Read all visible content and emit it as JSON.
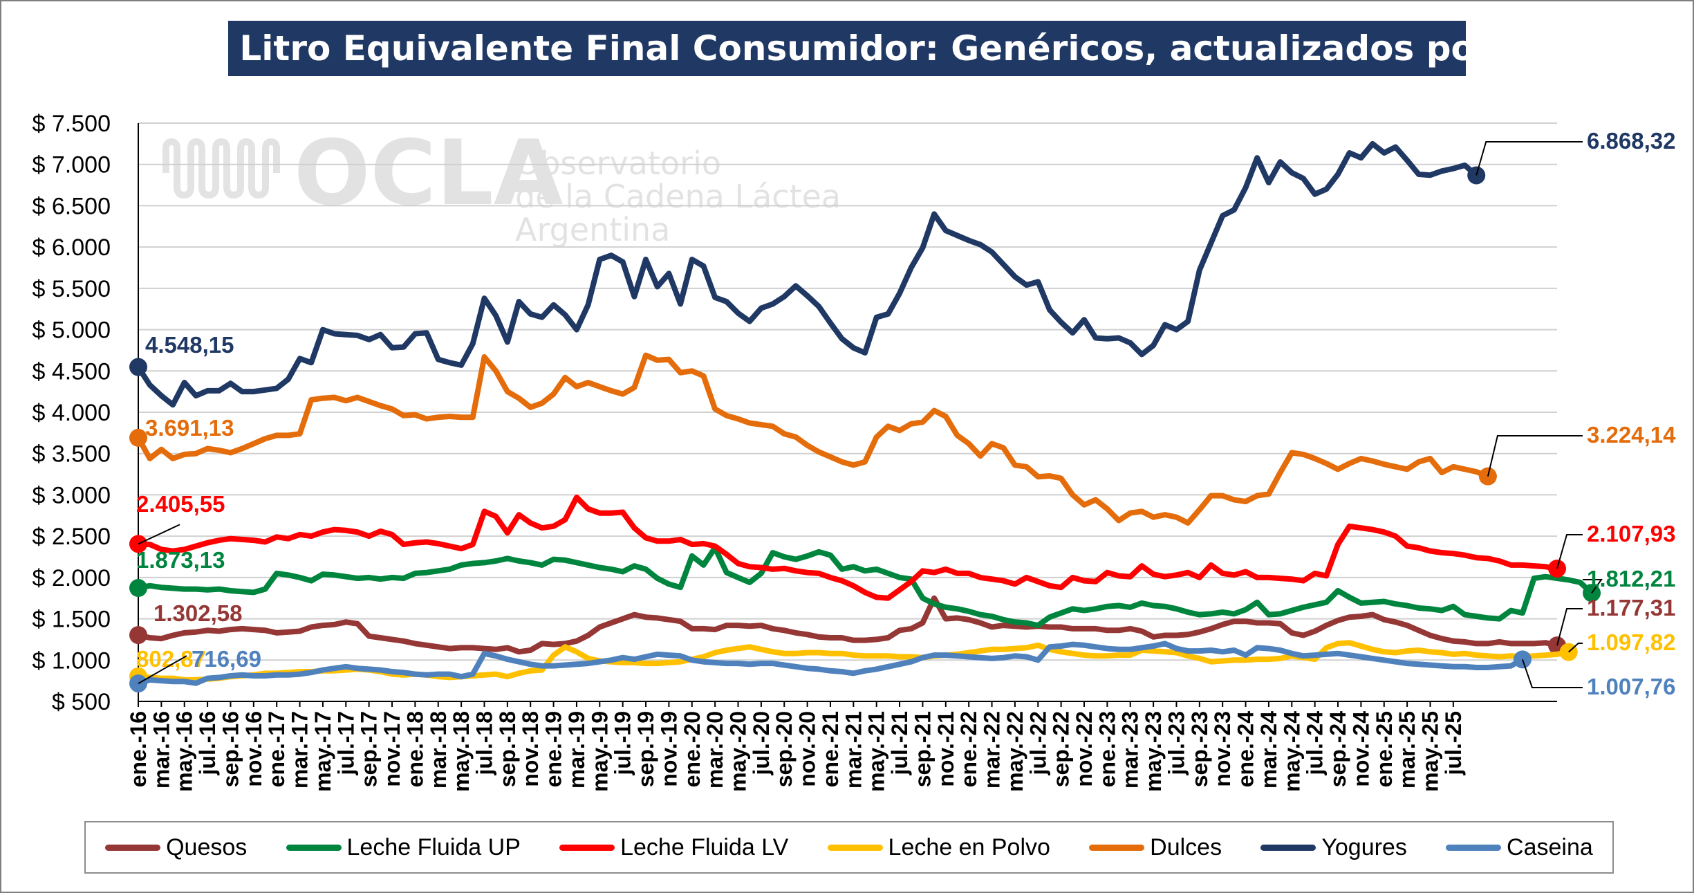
{
  "chart_data": {
    "type": "line",
    "title": "Valor Litro Equivalente Final Consumidor: Genéricos, actualizados por IPC",
    "xlabel": "",
    "ylabel": "",
    "ylim": [
      500,
      7500
    ],
    "y_ticks": [
      500,
      1000,
      1500,
      2000,
      2500,
      3000,
      3500,
      4000,
      4500,
      5000,
      5500,
      6000,
      6500,
      7000,
      7500
    ],
    "y_tick_labels": [
      "$ 500",
      "$ 1.000",
      "$ 1.500",
      "$ 2.000",
      "$ 2.500",
      "$ 3.000",
      "$ 3.500",
      "$ 4.000",
      "$ 4.500",
      "$ 5.000",
      "$ 5.500",
      "$ 6.000",
      "$ 6.500",
      "$ 7.000",
      "$ 7.500"
    ],
    "x_tick_labels": [
      "ene.-16",
      "mar.-16",
      "may.-16",
      "jul.-16",
      "sep.-16",
      "nov.-16",
      "ene.-17",
      "mar.-17",
      "may.-17",
      "jul.-17",
      "sep.-17",
      "nov.-17",
      "ene.-18",
      "mar.-18",
      "may.-18",
      "jul.-18",
      "sep.-18",
      "nov.-18",
      "ene.-19",
      "mar.-19",
      "may.-19",
      "jul.-19",
      "sep.-19",
      "nov.-19",
      "ene.-20",
      "mar.-20",
      "may.-20",
      "jul.-20",
      "sep.-20",
      "nov.-20",
      "ene.-21",
      "mar.-21",
      "may.-21",
      "jul.-21",
      "sep.-21",
      "nov.-21",
      "ene.-22",
      "mar.-22",
      "may.-22",
      "jul.-22",
      "sep.-22",
      "nov.-22",
      "ene.-23",
      "mar.-23",
      "may.-23",
      "jul.-23",
      "sep.-23",
      "nov.-23",
      "ene.-24",
      "mar.-24",
      "may.-24",
      "jul.-24",
      "sep.-24",
      "nov.-24",
      "ene.-25",
      "mar.-25",
      "may.-25",
      "jul.-25"
    ],
    "grid": "horizontal",
    "legend_position": "bottom",
    "series": [
      {
        "name": "Quesos",
        "color": "#953735",
        "start_label": "1.302,58",
        "end_label": "1.177,31",
        "values": [
          1303,
          1270,
          1260,
          1300,
          1330,
          1340,
          1360,
          1350,
          1370,
          1380,
          1370,
          1360,
          1330,
          1340,
          1350,
          1400,
          1420,
          1430,
          1460,
          1440,
          1290,
          1270,
          1250,
          1230,
          1200,
          1180,
          1160,
          1140,
          1150,
          1150,
          1140,
          1130,
          1150,
          1100,
          1120,
          1200,
          1190,
          1200,
          1230,
          1300,
          1400,
          1450,
          1500,
          1550,
          1520,
          1510,
          1490,
          1470,
          1380,
          1380,
          1370,
          1420,
          1420,
          1410,
          1420,
          1380,
          1360,
          1330,
          1310,
          1280,
          1270,
          1270,
          1240,
          1240,
          1250,
          1270,
          1360,
          1380,
          1450,
          1750,
          1500,
          1510,
          1490,
          1450,
          1400,
          1420,
          1410,
          1400,
          1410,
          1400,
          1400,
          1380,
          1380,
          1380,
          1360,
          1360,
          1380,
          1350,
          1280,
          1300,
          1300,
          1310,
          1340,
          1380,
          1430,
          1470,
          1470,
          1450,
          1450,
          1440,
          1330,
          1300,
          1350,
          1420,
          1480,
          1520,
          1530,
          1550,
          1490,
          1460,
          1420,
          1360,
          1300,
          1260,
          1230,
          1220,
          1200,
          1200,
          1220,
          1200,
          1200,
          1200,
          1210,
          1177
        ]
      },
      {
        "name": "Leche Fluida UP",
        "color": "#00853e",
        "start_label": "1.873,13",
        "end_label": "1.812,21",
        "values": [
          1873,
          1900,
          1880,
          1870,
          1860,
          1860,
          1850,
          1860,
          1840,
          1830,
          1820,
          1860,
          2050,
          2030,
          2000,
          1960,
          2040,
          2030,
          2010,
          1990,
          2000,
          1980,
          2000,
          1990,
          2050,
          2060,
          2080,
          2100,
          2150,
          2170,
          2180,
          2200,
          2230,
          2200,
          2180,
          2150,
          2220,
          2210,
          2180,
          2150,
          2120,
          2100,
          2070,
          2140,
          2100,
          1990,
          1920,
          1880,
          2260,
          2150,
          2360,
          2060,
          2000,
          1940,
          2050,
          2300,
          2250,
          2220,
          2260,
          2310,
          2270,
          2100,
          2130,
          2080,
          2100,
          2050,
          2000,
          1980,
          1750,
          1680,
          1640,
          1620,
          1590,
          1550,
          1530,
          1490,
          1460,
          1450,
          1420,
          1520,
          1570,
          1620,
          1600,
          1620,
          1650,
          1660,
          1640,
          1690,
          1660,
          1650,
          1620,
          1580,
          1550,
          1560,
          1580,
          1560,
          1610,
          1700,
          1550,
          1560,
          1600,
          1640,
          1670,
          1700,
          1840,
          1760,
          1690,
          1700,
          1710,
          1680,
          1660,
          1630,
          1620,
          1600,
          1650,
          1550,
          1530,
          1510,
          1500,
          1600,
          1570,
          1990,
          2010,
          1990,
          1970,
          1940,
          1812
        ]
      },
      {
        "name": "Leche Fluida LV",
        "color": "#ff0000",
        "start_label": "2.405,55",
        "end_label": "2.107,93",
        "values": [
          2406,
          2400,
          2340,
          2320,
          2340,
          2380,
          2420,
          2450,
          2470,
          2460,
          2450,
          2430,
          2490,
          2470,
          2520,
          2500,
          2550,
          2580,
          2570,
          2550,
          2500,
          2560,
          2520,
          2400,
          2420,
          2430,
          2410,
          2380,
          2350,
          2400,
          2800,
          2740,
          2540,
          2760,
          2660,
          2600,
          2620,
          2700,
          2970,
          2830,
          2780,
          2780,
          2790,
          2600,
          2480,
          2440,
          2440,
          2460,
          2400,
          2410,
          2380,
          2280,
          2170,
          2130,
          2120,
          2100,
          2110,
          2080,
          2060,
          2050,
          2000,
          1960,
          1900,
          1820,
          1760,
          1750,
          1850,
          1950,
          2080,
          2060,
          2100,
          2050,
          2050,
          2000,
          1980,
          1960,
          1920,
          2000,
          1950,
          1900,
          1880,
          2000,
          1960,
          1950,
          2060,
          2020,
          2010,
          2140,
          2040,
          2010,
          2030,
          2060,
          2000,
          2150,
          2050,
          2030,
          2070,
          2000,
          2000,
          1990,
          1980,
          1960,
          2050,
          2020,
          2400,
          2620,
          2600,
          2580,
          2550,
          2500,
          2380,
          2360,
          2320,
          2300,
          2290,
          2270,
          2240,
          2230,
          2200,
          2150,
          2150,
          2140,
          2130,
          2108
        ]
      },
      {
        "name": "Leche en Polvo",
        "color": "#ffc000",
        "start_label": "802,87",
        "end_label": "1.097,82",
        "values": [
          803,
          790,
          780,
          780,
          760,
          760,
          770,
          780,
          800,
          810,
          820,
          840,
          840,
          850,
          860,
          860,
          870,
          870,
          880,
          890,
          880,
          860,
          830,
          820,
          830,
          820,
          800,
          790,
          800,
          810,
          820,
          830,
          800,
          840,
          870,
          880,
          1060,
          1160,
          1100,
          1020,
          990,
          980,
          970,
          970,
          960,
          960,
          970,
          980,
          1010,
          1040,
          1090,
          1120,
          1140,
          1160,
          1130,
          1100,
          1080,
          1080,
          1090,
          1090,
          1080,
          1080,
          1060,
          1050,
          1050,
          1050,
          1040,
          1040,
          1030,
          1050,
          1060,
          1070,
          1090,
          1110,
          1130,
          1130,
          1140,
          1150,
          1180,
          1130,
          1100,
          1080,
          1060,
          1050,
          1050,
          1060,
          1060,
          1120,
          1110,
          1100,
          1090,
          1050,
          1020,
          980,
          990,
          1000,
          1000,
          1010,
          1010,
          1020,
          1050,
          1030,
          1010,
          1150,
          1200,
          1210,
          1170,
          1130,
          1100,
          1090,
          1110,
          1120,
          1100,
          1090,
          1070,
          1080,
          1060,
          1050,
          1040,
          1050,
          1040,
          1050,
          1060,
          1070,
          1098
        ]
      },
      {
        "name": "Dulces",
        "color": "#e46c0a",
        "start_label": "3.691,13",
        "end_label": "3.224,14",
        "values": [
          3691,
          3440,
          3550,
          3440,
          3490,
          3500,
          3560,
          3540,
          3510,
          3560,
          3620,
          3680,
          3720,
          3720,
          3740,
          4150,
          4170,
          4180,
          4140,
          4180,
          4130,
          4080,
          4040,
          3960,
          3970,
          3920,
          3940,
          3950,
          3940,
          3940,
          4670,
          4500,
          4250,
          4170,
          4060,
          4110,
          4220,
          4420,
          4310,
          4360,
          4310,
          4260,
          4220,
          4300,
          4690,
          4630,
          4640,
          4480,
          4500,
          4440,
          4040,
          3960,
          3920,
          3870,
          3850,
          3830,
          3740,
          3700,
          3600,
          3520,
          3460,
          3400,
          3360,
          3400,
          3700,
          3830,
          3780,
          3860,
          3880,
          4020,
          3950,
          3720,
          3620,
          3470,
          3620,
          3570,
          3360,
          3340,
          3220,
          3230,
          3200,
          3000,
          2880,
          2940,
          2830,
          2690,
          2780,
          2800,
          2730,
          2760,
          2730,
          2660,
          2820,
          2990,
          2990,
          2940,
          2920,
          2990,
          3010,
          3270,
          3510,
          3490,
          3440,
          3380,
          3310,
          3380,
          3440,
          3410,
          3370,
          3340,
          3310,
          3400,
          3440,
          3270,
          3340,
          3310,
          3280,
          3224
        ]
      },
      {
        "name": "Yogures",
        "color": "#1f3864",
        "start_label": "4.548,15",
        "end_label": "6.868,32",
        "values": [
          4548,
          4330,
          4200,
          4090,
          4360,
          4200,
          4260,
          4260,
          4350,
          4250,
          4250,
          4270,
          4290,
          4400,
          4650,
          4600,
          5000,
          4950,
          4940,
          4930,
          4880,
          4940,
          4780,
          4790,
          4950,
          4960,
          4640,
          4600,
          4570,
          4830,
          5380,
          5170,
          4850,
          5340,
          5190,
          5150,
          5300,
          5180,
          5000,
          5300,
          5850,
          5900,
          5820,
          5400,
          5850,
          5520,
          5680,
          5310,
          5850,
          5770,
          5390,
          5340,
          5200,
          5100,
          5260,
          5310,
          5400,
          5530,
          5410,
          5280,
          5080,
          4890,
          4780,
          4720,
          5150,
          5190,
          5440,
          5750,
          5990,
          6400,
          6200,
          6140,
          6080,
          6030,
          5940,
          5790,
          5640,
          5540,
          5580,
          5240,
          5090,
          4960,
          5120,
          4900,
          4890,
          4900,
          4840,
          4700,
          4810,
          5060,
          5000,
          5100,
          5720,
          6050,
          6380,
          6450,
          6720,
          7080,
          6780,
          7030,
          6900,
          6830,
          6640,
          6700,
          6880,
          7140,
          7080,
          7250,
          7140,
          7210,
          7050,
          6880,
          6870,
          6920,
          6950,
          6990,
          6868
        ]
      },
      {
        "name": "Caseina",
        "color": "#4f81bd",
        "start_label": "716,69",
        "end_label": "1.007,76",
        "values": [
          717,
          760,
          750,
          740,
          740,
          720,
          780,
          790,
          810,
          820,
          810,
          810,
          820,
          820,
          830,
          850,
          880,
          900,
          920,
          900,
          890,
          880,
          860,
          850,
          830,
          820,
          830,
          830,
          800,
          830,
          1080,
          1050,
          1010,
          980,
          950,
          930,
          930,
          940,
          950,
          960,
          980,
          1000,
          1030,
          1010,
          1040,
          1070,
          1060,
          1050,
          1000,
          980,
          970,
          960,
          960,
          950,
          960,
          960,
          940,
          920,
          900,
          890,
          870,
          860,
          840,
          870,
          890,
          920,
          950,
          980,
          1030,
          1060,
          1060,
          1050,
          1040,
          1030,
          1020,
          1030,
          1050,
          1040,
          1000,
          1160,
          1170,
          1190,
          1180,
          1160,
          1140,
          1130,
          1130,
          1150,
          1170,
          1200,
          1140,
          1110,
          1110,
          1120,
          1100,
          1120,
          1060,
          1150,
          1140,
          1120,
          1080,
          1050,
          1060,
          1070,
          1080,
          1060,
          1040,
          1020,
          1000,
          980,
          960,
          950,
          940,
          930,
          920,
          920,
          910,
          910,
          920,
          930,
          1008
        ]
      }
    ]
  },
  "watermark": {
    "logo": "OCLA",
    "line1": "Observatorio",
    "line2": "de la Cadena Láctea",
    "line3": "Argentina"
  }
}
